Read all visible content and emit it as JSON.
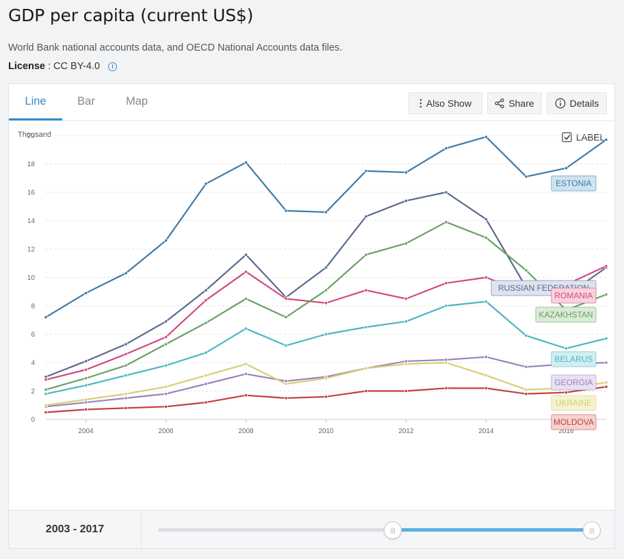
{
  "header": {
    "title": "GDP per capita (current US$)",
    "source": "World Bank national accounts data, and OECD National Accounts data files.",
    "license_label": "License",
    "license_value": ": CC BY-4.0"
  },
  "tabs": [
    {
      "label": "Line",
      "active": true
    },
    {
      "label": "Bar",
      "active": false
    },
    {
      "label": "Map",
      "active": false
    }
  ],
  "toolbar": {
    "also_show": "Also Show",
    "share": "Share",
    "details": "Details"
  },
  "label_toggle": {
    "text": "LABEL",
    "checked": true
  },
  "range": {
    "text": "2003 - 2017"
  },
  "chart_data": {
    "type": "line",
    "ylabel": "Thousand",
    "ylim": [
      0,
      20
    ],
    "xlim": [
      2003,
      2017
    ],
    "yticks": [
      "0",
      "2",
      "4",
      "6",
      "8",
      "10",
      "12",
      "14",
      "16",
      "18",
      "20"
    ],
    "xticks": [
      "2004",
      "2006",
      "2008",
      "2010",
      "2012",
      "2014",
      "2016"
    ],
    "x": [
      2003,
      2004,
      2005,
      2006,
      2007,
      2008,
      2009,
      2010,
      2011,
      2012,
      2013,
      2014,
      2015,
      2016,
      2017
    ],
    "grid": true,
    "series": [
      {
        "name": "ESTONIA",
        "color": "#3c7aa8",
        "label_bg": "#cfe3f1",
        "values": [
          7.2,
          8.9,
          10.3,
          12.6,
          16.6,
          18.1,
          14.7,
          14.6,
          17.5,
          17.4,
          19.1,
          19.9,
          17.1,
          17.7,
          19.7
        ]
      },
      {
        "name": "RUSSIAN FEDERATION",
        "color": "#58698f",
        "label_bg": "#dfe3ee",
        "values": [
          3.0,
          4.1,
          5.3,
          6.9,
          9.1,
          11.6,
          8.6,
          10.7,
          14.3,
          15.4,
          16.0,
          14.1,
          9.3,
          8.7,
          10.7
        ]
      },
      {
        "name": "ROMANIA",
        "color": "#d2497e",
        "label_bg": "#f7d3e0",
        "values": [
          2.8,
          3.5,
          4.6,
          5.8,
          8.4,
          10.4,
          8.5,
          8.2,
          9.1,
          8.5,
          9.6,
          10.0,
          8.9,
          9.5,
          10.8
        ]
      },
      {
        "name": "KAZAKHSTAN",
        "color": "#6a9f63",
        "label_bg": "#dbebd8",
        "values": [
          2.1,
          2.9,
          3.8,
          5.3,
          6.8,
          8.5,
          7.2,
          9.1,
          11.6,
          12.4,
          13.9,
          12.8,
          10.5,
          7.7,
          8.8
        ]
      },
      {
        "name": "BELARUS",
        "color": "#4cb5c2",
        "label_bg": "#d3eef1",
        "values": [
          1.8,
          2.4,
          3.1,
          3.8,
          4.7,
          6.4,
          5.2,
          6.0,
          6.5,
          6.9,
          8.0,
          8.3,
          5.9,
          5.0,
          5.7
        ]
      },
      {
        "name": "GEORGIA",
        "color": "#9b82bd",
        "label_bg": "#e8e1f1",
        "values": [
          0.9,
          1.2,
          1.5,
          1.8,
          2.5,
          3.2,
          2.7,
          3.0,
          3.6,
          4.1,
          4.2,
          4.4,
          3.7,
          3.9,
          4.0
        ]
      },
      {
        "name": "UKRAINE",
        "color": "#d5d070",
        "label_bg": "#f4f2d0",
        "values": [
          1.0,
          1.4,
          1.8,
          2.3,
          3.1,
          3.9,
          2.5,
          2.9,
          3.6,
          3.9,
          4.0,
          3.1,
          2.1,
          2.2,
          2.6
        ]
      },
      {
        "name": "MOLDOVA",
        "color": "#c2403e",
        "label_bg": "#f4d2d1",
        "values": [
          0.5,
          0.7,
          0.8,
          0.9,
          1.2,
          1.7,
          1.5,
          1.6,
          2.0,
          2.0,
          2.2,
          2.2,
          1.8,
          1.9,
          2.3
        ]
      }
    ]
  }
}
